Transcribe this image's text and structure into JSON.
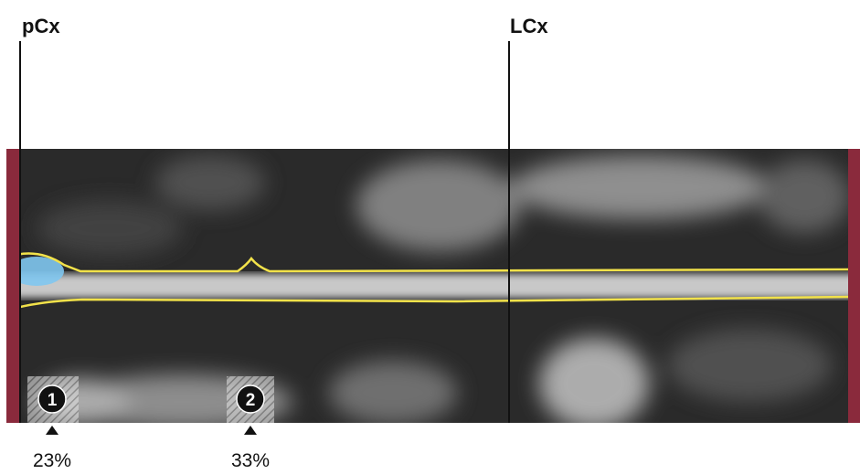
{
  "segments": [
    {
      "label": "pCx"
    },
    {
      "label": "LCx"
    }
  ],
  "lesions": [
    {
      "number": "1",
      "stenosis": "23%"
    },
    {
      "number": "2",
      "stenosis": "33%"
    }
  ]
}
